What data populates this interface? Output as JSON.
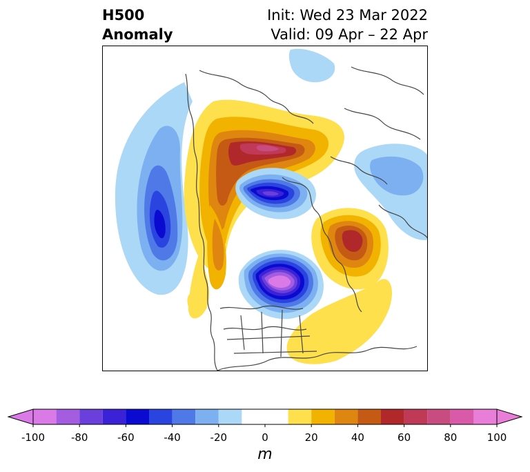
{
  "title": {
    "line1_left": "H500",
    "line2_left": "Anomaly",
    "line1_right": "Init: Wed 23 Mar 2022",
    "line2_right": "Valid: 09 Apr – 22 Apr"
  },
  "colorbar": {
    "unit": "m",
    "ticks": [
      "-100",
      "-80",
      "-60",
      "-40",
      "-20",
      "0",
      "20",
      "40",
      "60",
      "80",
      "100"
    ],
    "levels": [
      -100,
      -90,
      -80,
      -70,
      -60,
      -50,
      -40,
      -30,
      -20,
      -10,
      10,
      20,
      30,
      40,
      50,
      60,
      70,
      80,
      90,
      100
    ],
    "colors": [
      "#d97ae6",
      "#a45ce0",
      "#6a3fdb",
      "#3b22d6",
      "#0a0ad0",
      "#2a44df",
      "#4f79e6",
      "#7cb0f0",
      "#acd8f7",
      "#ffffff",
      "#fde04c",
      "#f2b200",
      "#de8610",
      "#c55a14",
      "#b0282a",
      "#c03a58",
      "#c84c80",
      "#d85aa8",
      "#e87ed8"
    ],
    "extend": "both"
  },
  "map": {
    "projection": "polar stereographic",
    "anomalies": [
      {
        "name": "west-pacific-trough",
        "sign": "negative",
        "peak": -60
      },
      {
        "name": "north-canada-ridge",
        "sign": "positive",
        "peak": 60
      },
      {
        "name": "beaufort-trough",
        "sign": "negative",
        "peak": -80
      },
      {
        "name": "central-canada-trough",
        "sign": "negative",
        "peak": -100
      },
      {
        "name": "north-atlantic-ridge",
        "sign": "positive",
        "peak": 60
      },
      {
        "name": "europe-trough",
        "sign": "negative",
        "peak": -30
      },
      {
        "name": "alaska-ridge",
        "sign": "positive",
        "peak": 40
      },
      {
        "name": "southeast-us-ridge",
        "sign": "positive",
        "peak": 20
      }
    ]
  }
}
